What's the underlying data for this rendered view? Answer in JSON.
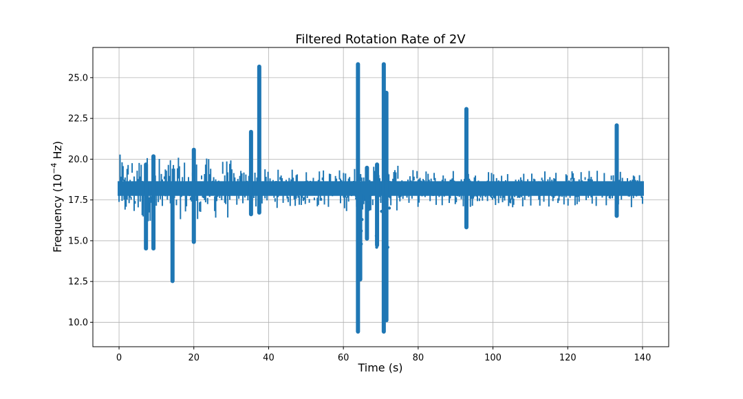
{
  "chart_data": {
    "type": "scatter",
    "title": "Filtered Rotation Rate of 2V",
    "xlabel": "Time (s)",
    "ylabel_base": "Frequency (10",
    "ylabel_sup": "−4",
    "ylabel_tail": " Hz)",
    "xlim": [
      -7,
      147
    ],
    "ylim": [
      8.5,
      26.85
    ],
    "xticks": [
      0,
      20,
      40,
      60,
      80,
      100,
      120,
      140
    ],
    "xtick_labels": [
      "0",
      "20",
      "40",
      "60",
      "80",
      "100",
      "120",
      "140"
    ],
    "yticks": [
      10.0,
      12.5,
      15.0,
      17.5,
      20.0,
      22.5,
      25.0
    ],
    "ytick_labels": [
      "10.0",
      "12.5",
      "15.0",
      "17.5",
      "20.0",
      "22.5",
      "25.0"
    ],
    "grid": true,
    "color": "#1f77b4",
    "series": [
      {
        "x_range": [
          0,
          140
        ],
        "baseline": 18.2,
        "spikes": [
          {
            "x": 14.3,
            "ymin": 12.4,
            "ymax": 18.3
          },
          {
            "x": 20.0,
            "ymin": 14.8,
            "ymax": 20.7
          },
          {
            "x": 35.3,
            "ymin": 16.5,
            "ymax": 21.8
          },
          {
            "x": 37.5,
            "ymin": 16.6,
            "ymax": 25.8
          },
          {
            "x": 63.9,
            "ymin": 9.3,
            "ymax": 25.95
          },
          {
            "x": 64.5,
            "ymin": 12.5,
            "ymax": 18.0
          },
          {
            "x": 70.8,
            "ymin": 9.3,
            "ymax": 25.95
          },
          {
            "x": 71.5,
            "ymin": 10.0,
            "ymax": 24.2
          },
          {
            "x": 92.9,
            "ymin": 15.7,
            "ymax": 23.2
          },
          {
            "x": 133.1,
            "ymin": 16.4,
            "ymax": 22.2
          },
          {
            "x": 66.3,
            "ymin": 15.0,
            "ymax": 19.6
          },
          {
            "x": 69.0,
            "ymin": 14.6,
            "ymax": 19.8
          },
          {
            "x": 9.2,
            "ymin": 14.4,
            "ymax": 20.3
          },
          {
            "x": 7.2,
            "ymin": 14.4,
            "ymax": 19.8
          }
        ]
      }
    ]
  }
}
